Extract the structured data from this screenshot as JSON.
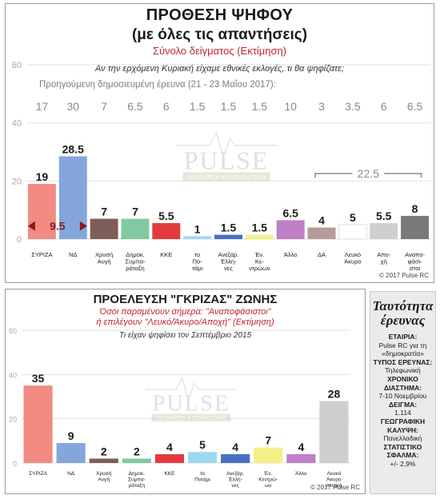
{
  "colors": {
    "red": "#f28b82",
    "blue": "#85a6dc",
    "brown": "#7f5e58",
    "green": "#82c9a0",
    "crimson": "#e23b3f",
    "lightblue": "#9fd9ef",
    "darkblue": "#4b6fc6",
    "yellow": "#f5ef8a",
    "purple": "#c07fc6",
    "taupe": "#b59c98",
    "white": "#ffffff",
    "lightgray": "#cfcfcf",
    "darkgray": "#7a7a7a",
    "accent_red": "#c0262d"
  },
  "watermark": {
    "logo": "PULSE",
    "tagline": "RESEARCH & CONSULTING"
  },
  "top_panel": {
    "title": "ΠΡΟΘΕΣΗ ΨΗΦΟΥ",
    "subtitle": "(με όλες τις απαντήσεις)",
    "sample_label": "Σύνολο δείγματος  (Εκτίμηση)",
    "question": "Αν την ερχόμενη Κυριακή είχαμε εθνικές εκλογές, τι θα ψηφίζατε;",
    "previous_label": "Προηγούμενη δημοσιευμένη έρευνα (21 - 23 Μαΐου 2017):",
    "difference_label": "9.5",
    "bracket_label": "22.5",
    "copyright": "© 2017 Pulse RC"
  },
  "bottom_panel": {
    "title": "ΠΡΟΕΛΕΥΣΗ \"ΓΚΡΙΖΑΣ\" ΖΩΝΗΣ",
    "note_line1": "Όσοι παραμένουν σήμερα: \"Αναποφάσιστοι\"",
    "note_line2": "ή επιλέγουν \"Λευκό/Άκυρο/Αποχή\" (Εκτίμηση)",
    "question": "Τι είχαν ψηφίσει τον Σεπτέμβριο 2015",
    "copyright": "© 2017 Pulse RC"
  },
  "info_box": {
    "title_line1": "Ταυτότητα",
    "title_line2": "έρευνας",
    "company_label": "ΕΤΑΙΡΙΑ:",
    "company_value": "Pulse RC για τη «δημοκρατία»",
    "type_label": "ΤΥΠΟΣ ΕΡΕΥΝΑΣ:",
    "type_value": "Τηλεφωνική",
    "period_label": "ΧΡΟΝΙΚΟ ΔΙΑΣΤΗΜΑ:",
    "period_value": "7-10 Νοεμβρίου",
    "sample_label": "ΔΕΙΓΜΑ:",
    "sample_value": "1.114",
    "coverage_label": "ΓΕΩΓΡΑΦΙΚΗ ΚΑΛΥΨΗ:",
    "coverage_value": "Πανελλαδική",
    "error_label": "ΣΤΑΤΙΣΤΙΚΟ ΣΦΑΛΜΑ:",
    "error_value": "+/- 2,9%"
  },
  "chart_data": [
    {
      "type": "bar",
      "categories": [
        [
          "ΣΥΡΙΖΑ"
        ],
        [
          "ΝΔ"
        ],
        [
          "Χρυσή",
          "Αυγή"
        ],
        [
          "Δημοκ.",
          "Συμπα-",
          "ράταξη"
        ],
        [
          "ΚΚΕ"
        ],
        [
          "το",
          "Πο-",
          "τάμι"
        ],
        [
          "Ανεξάρ.",
          "Έλλη-",
          "νες"
        ],
        [
          "Έν.",
          "Κε-",
          "ντρώων"
        ],
        [
          "Άλλο"
        ],
        [
          "ΔΑ"
        ],
        [
          "Λευκό",
          "Άκυρο"
        ],
        [
          "Απο-",
          "χή"
        ],
        [
          "Αναπο-",
          "φάσι-",
          "στοι"
        ]
      ],
      "values": [
        19,
        28.5,
        7,
        7,
        5.5,
        1,
        1.5,
        1.5,
        6.5,
        4,
        5,
        5.5,
        8
      ],
      "value_labels": [
        "19",
        "28.5",
        "7",
        "7",
        "5.5",
        "1",
        "1.5",
        "1.5",
        "6.5",
        "4",
        "5",
        "5.5",
        "8"
      ],
      "previous_values": [
        "17",
        "30",
        "7",
        "6.5",
        "6",
        "1.5",
        "1.5",
        "1.5",
        "10",
        "3",
        "3.5",
        "6",
        "6.5"
      ],
      "bar_colors": [
        "red",
        "blue",
        "brown",
        "green",
        "crimson",
        "lightblue",
        "darkblue",
        "yellow",
        "purple",
        "taupe",
        "white",
        "lightgray",
        "darkgray"
      ],
      "yticks": [
        0,
        20,
        40,
        60
      ],
      "ylim": [
        0,
        60
      ],
      "grid": true
    },
    {
      "type": "bar",
      "categories": [
        [
          "ΣΥΡΙΖΑ"
        ],
        [
          "ΝΔ"
        ],
        [
          "Χρυσή",
          "Αυγή"
        ],
        [
          "Δημοκ.",
          "Συμπα-",
          "ράταξη"
        ],
        [
          "ΚΚΕ"
        ],
        [
          "το",
          "Ποτάμι"
        ],
        [
          "Ανεξάρ.",
          "Έλλη-",
          "νες"
        ],
        [
          "Έν.",
          "Κεντρώ-",
          "ων"
        ],
        [
          "Άλλο"
        ],
        [
          "Λευκό",
          "Άκυρο",
          "Αποχή"
        ]
      ],
      "values": [
        35,
        9,
        2,
        2,
        4,
        5,
        4,
        7,
        4,
        28
      ],
      "value_labels": [
        "35",
        "9",
        "2",
        "2",
        "4",
        "5",
        "4",
        "7",
        "4",
        "28"
      ],
      "bar_colors": [
        "red",
        "blue",
        "brown",
        "green",
        "crimson",
        "lightblue",
        "darkblue",
        "yellow",
        "purple",
        "lightgray"
      ],
      "yticks": [
        0,
        20,
        40,
        60
      ],
      "ylim": [
        0,
        60
      ],
      "grid": true
    }
  ]
}
